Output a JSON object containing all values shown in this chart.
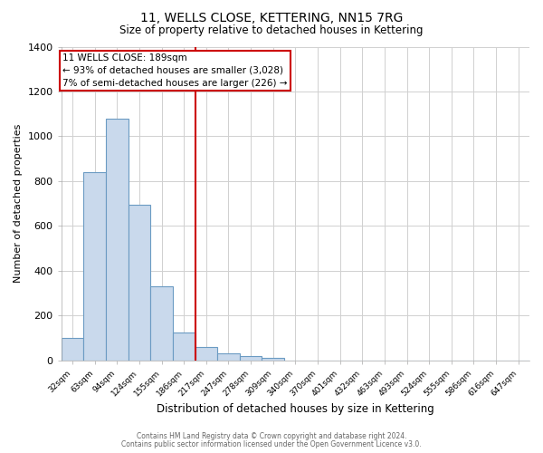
{
  "title": "11, WELLS CLOSE, KETTERING, NN15 7RG",
  "subtitle": "Size of property relative to detached houses in Kettering",
  "xlabel": "Distribution of detached houses by size in Kettering",
  "ylabel": "Number of detached properties",
  "bar_labels": [
    "32sqm",
    "63sqm",
    "94sqm",
    "124sqm",
    "155sqm",
    "186sqm",
    "217sqm",
    "247sqm",
    "278sqm",
    "309sqm",
    "340sqm",
    "370sqm",
    "401sqm",
    "432sqm",
    "463sqm",
    "493sqm",
    "524sqm",
    "555sqm",
    "586sqm",
    "616sqm",
    "647sqm"
  ],
  "bar_values": [
    100,
    840,
    1080,
    695,
    330,
    125,
    60,
    30,
    20,
    10,
    0,
    0,
    0,
    0,
    0,
    0,
    0,
    0,
    0,
    0,
    0
  ],
  "bar_color": "#c9d9ec",
  "bar_edge_color": "#6b9bc3",
  "bar_width": 1.0,
  "ylim": [
    0,
    1400
  ],
  "yticks": [
    0,
    200,
    400,
    600,
    800,
    1000,
    1200,
    1400
  ],
  "vline_x": 5.5,
  "vline_color": "#cc0000",
  "annotation_title": "11 WELLS CLOSE: 189sqm",
  "annotation_line1": "← 93% of detached houses are smaller (3,028)",
  "annotation_line2": "7% of semi-detached houses are larger (226) →",
  "annotation_box_color": "#cc0000",
  "footer_line1": "Contains HM Land Registry data © Crown copyright and database right 2024.",
  "footer_line2": "Contains public sector information licensed under the Open Government Licence v3.0.",
  "background_color": "#ffffff",
  "grid_color": "#d0d0d0"
}
